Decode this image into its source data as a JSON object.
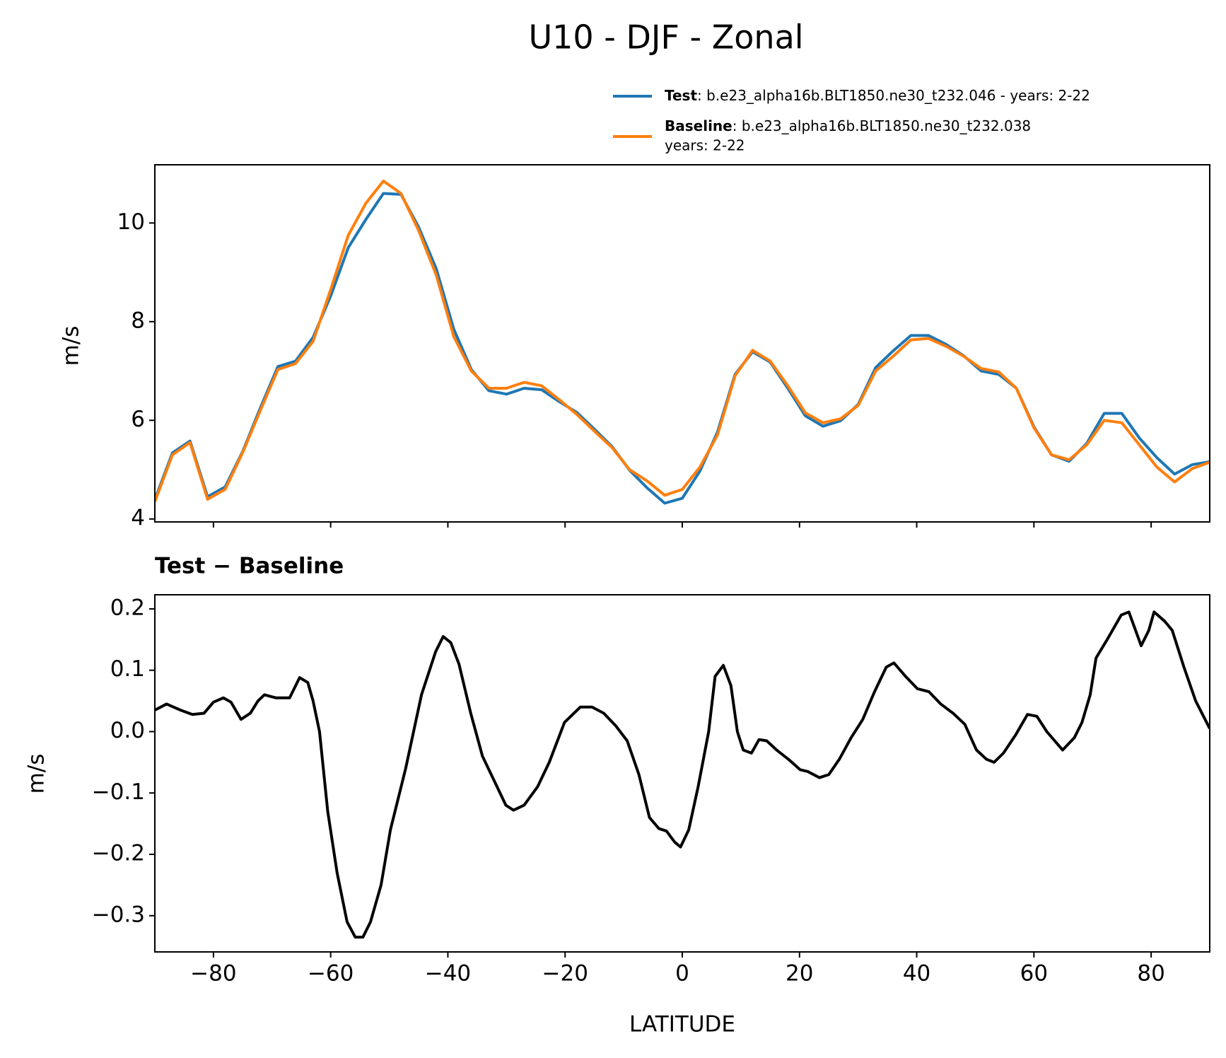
{
  "chart_data": [
    {
      "type": "line",
      "title": "U10 - DJF - Zonal",
      "ylabel": "m/s",
      "x": [
        -90,
        -87,
        -84,
        -81,
        -78,
        -75,
        -72,
        -69,
        -66,
        -63,
        -60,
        -57,
        -54,
        -51,
        -48,
        -45,
        -42,
        -39,
        -36,
        -33,
        -30,
        -27,
        -24,
        -21,
        -18,
        -15,
        -12,
        -9,
        -6,
        -3,
        0,
        3,
        6,
        9,
        12,
        15,
        18,
        21,
        24,
        27,
        30,
        33,
        36,
        39,
        42,
        45,
        48,
        51,
        54,
        57,
        60,
        63,
        66,
        69,
        72,
        75,
        78,
        81,
        84,
        87,
        90
      ],
      "series": [
        {
          "name": "Test",
          "details": [
            ": b.e23_alpha16b.BLT1850.ne30_t232.046 - years: 2-22"
          ],
          "color": "#1f77b4",
          "values": [
            4.39,
            5.34,
            5.58,
            4.45,
            4.65,
            5.37,
            6.25,
            7.09,
            7.2,
            7.68,
            8.52,
            9.5,
            10.07,
            10.6,
            10.58,
            9.92,
            9.08,
            7.85,
            7.03,
            6.6,
            6.53,
            6.65,
            6.62,
            6.38,
            6.16,
            5.82,
            5.47,
            4.99,
            4.63,
            4.32,
            4.42,
            4.97,
            5.76,
            6.93,
            7.39,
            7.18,
            6.65,
            6.09,
            5.88,
            5.99,
            6.32,
            7.07,
            7.41,
            7.72,
            7.72,
            7.54,
            7.31,
            7.0,
            6.93,
            6.65,
            5.87,
            5.3,
            5.17,
            5.53,
            6.14,
            6.14,
            5.64,
            5.24,
            4.91,
            5.1,
            5.16
          ]
        },
        {
          "name": "Baseline",
          "details": [
            ": b.e23_alpha16b.BLT1850.ne30_t232.038",
            "years: 2-22"
          ],
          "color": "#ff7f0e",
          "values": [
            4.35,
            5.3,
            5.55,
            4.4,
            4.6,
            5.35,
            6.2,
            7.03,
            7.15,
            7.6,
            8.65,
            9.75,
            10.4,
            10.85,
            10.6,
            9.85,
            8.95,
            7.7,
            7.0,
            6.65,
            6.65,
            6.77,
            6.7,
            6.42,
            6.12,
            5.78,
            5.45,
            5.0,
            4.77,
            4.48,
            4.6,
            5.05,
            5.7,
            6.9,
            7.42,
            7.2,
            6.7,
            6.15,
            5.95,
            6.03,
            6.3,
            7.0,
            7.3,
            7.63,
            7.66,
            7.5,
            7.3,
            7.05,
            6.98,
            6.65,
            5.85,
            5.3,
            5.2,
            5.5,
            6.0,
            5.95,
            5.5,
            5.05,
            4.75,
            5.02,
            5.15
          ]
        }
      ],
      "xlim": [
        -90,
        90
      ],
      "xticks": [
        -80,
        -60,
        -40,
        -20,
        0,
        20,
        40,
        60,
        80
      ],
      "ylim": [
        3.94,
        11.18
      ],
      "yticks": [
        4,
        6,
        8,
        10
      ]
    },
    {
      "type": "line",
      "title": "Test − Baseline",
      "ylabel": "m/s",
      "xlabel": "LATITUDE",
      "x": [
        -90,
        -88,
        -85.6,
        -83.6,
        -81.6,
        -80,
        -78.3,
        -77,
        -75.3,
        -73.7,
        -72.4,
        -71.3,
        -69.3,
        -67,
        -65.3,
        -63.9,
        -63,
        -61.9,
        -60.5,
        -58.9,
        -57.2,
        -55.8,
        -54.5,
        -53.2,
        -51.4,
        -49.8,
        -47.2,
        -44.5,
        -42.1,
        -40.8,
        -39.5,
        -38.1,
        -36.1,
        -34.1,
        -32.1,
        -30.1,
        -28.8,
        -27,
        -24.7,
        -22.7,
        -20.1,
        -17.4,
        -15.4,
        -13.4,
        -11.4,
        -9.4,
        -7.4,
        -5.6,
        -4,
        -2.7,
        -1.3,
        -0.3,
        1.1,
        2.7,
        4.5,
        5.6,
        7,
        8.3,
        9.4,
        10.4,
        11.8,
        13.1,
        14.4,
        16.1,
        18.1,
        20.1,
        21.4,
        23.4,
        25,
        26.8,
        28.8,
        30.8,
        32.8,
        34.8,
        36.1,
        38.1,
        40.1,
        42.1,
        44.1,
        46.2,
        48.2,
        50.2,
        51.9,
        53.2,
        54.8,
        56.9,
        58.9,
        60.5,
        62.2,
        64.9,
        66.9,
        68.2,
        69.6,
        70.6,
        72.5,
        74.9,
        76.2,
        78.3,
        79.6,
        80.5,
        82.3,
        83.6,
        85.6,
        87.6,
        90
      ],
      "series": [
        {
          "color": "#000000",
          "values": [
            0.035,
            0.045,
            0.035,
            0.028,
            0.03,
            0.048,
            0.055,
            0.048,
            0.02,
            0.03,
            0.05,
            0.06,
            0.055,
            0.055,
            0.088,
            0.08,
            0.05,
            0.0,
            -0.13,
            -0.23,
            -0.31,
            -0.335,
            -0.335,
            -0.31,
            -0.25,
            -0.16,
            -0.06,
            0.06,
            0.13,
            0.155,
            0.145,
            0.11,
            0.03,
            -0.04,
            -0.08,
            -0.12,
            -0.128,
            -0.12,
            -0.09,
            -0.05,
            0.015,
            0.04,
            0.04,
            0.03,
            0.01,
            -0.015,
            -0.07,
            -0.14,
            -0.158,
            -0.162,
            -0.18,
            -0.188,
            -0.16,
            -0.09,
            0.0,
            0.09,
            0.108,
            0.075,
            0.0,
            -0.03,
            -0.035,
            -0.013,
            -0.015,
            -0.03,
            -0.045,
            -0.062,
            -0.065,
            -0.075,
            -0.07,
            -0.045,
            -0.01,
            0.02,
            0.065,
            0.105,
            0.112,
            0.09,
            0.07,
            0.065,
            0.045,
            0.03,
            0.012,
            -0.03,
            -0.045,
            -0.05,
            -0.035,
            -0.005,
            0.028,
            0.025,
            0.0,
            -0.03,
            -0.01,
            0.015,
            0.06,
            0.12,
            0.15,
            0.19,
            0.195,
            0.14,
            0.165,
            0.195,
            0.18,
            0.165,
            0.105,
            0.05,
            0.005
          ]
        }
      ],
      "xlim": [
        -90,
        90
      ],
      "xticks": [
        {
          "value": -80,
          "label": "−80"
        },
        {
          "value": -60,
          "label": "−60"
        },
        {
          "value": -40,
          "label": "−40"
        },
        {
          "value": -20,
          "label": "−20"
        },
        0,
        20,
        40,
        60,
        80
      ],
      "ylim": [
        -0.359,
        0.223
      ],
      "yticks": [
        {
          "value": -0.3,
          "label": "−0.3"
        },
        {
          "value": -0.2,
          "label": "−0.2"
        },
        {
          "value": -0.1,
          "label": "−0.1"
        },
        {
          "value": 0,
          "label": "0.0"
        },
        0.1,
        0.2
      ]
    }
  ]
}
